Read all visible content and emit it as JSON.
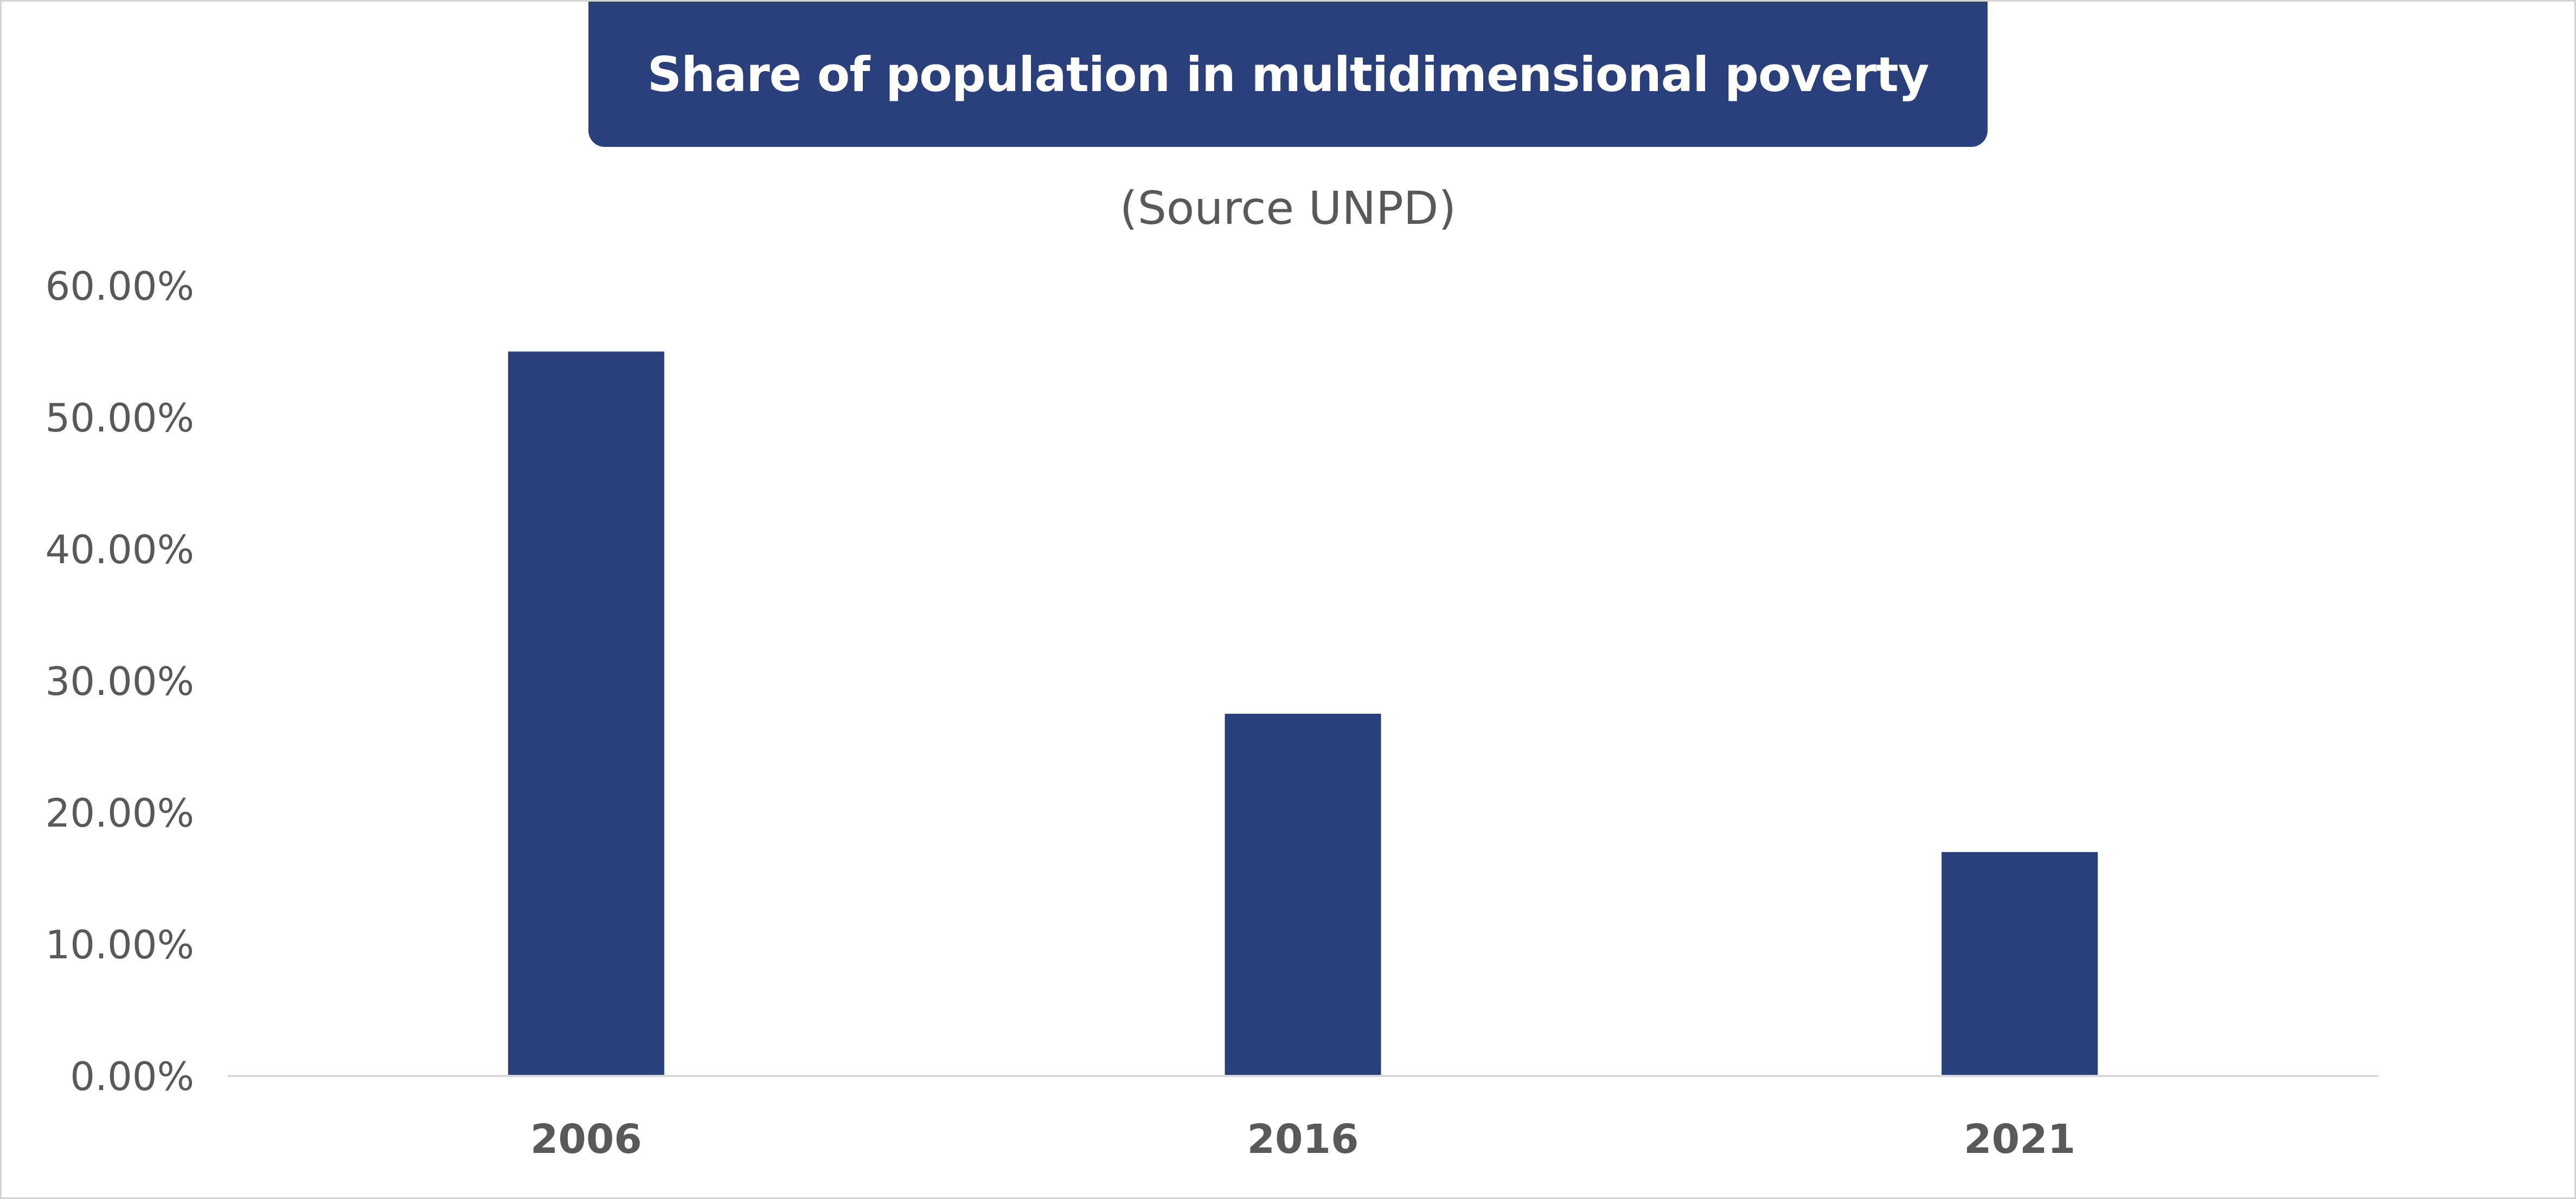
{
  "chart_data": {
    "type": "bar",
    "title": "Share of population in multidimensional poverty",
    "subtitle": "(Source UNPD)",
    "categories": [
      "2006",
      "2016",
      "2021"
    ],
    "values": [
      55.0,
      27.5,
      17.0
    ],
    "xlabel": "",
    "ylabel": "",
    "ylim": [
      0,
      60
    ],
    "yticks": [
      "0.00%",
      "10.00%",
      "20.00%",
      "30.00%",
      "40.00%",
      "50.00%",
      "60.00%"
    ],
    "grid": false,
    "legend": "none",
    "colors": {
      "bar": "#2a407d",
      "title_banner": "#2a407d",
      "title_text": "#ffffff",
      "axis_text": "#595959",
      "axis_line": "#d9d9d9"
    }
  }
}
